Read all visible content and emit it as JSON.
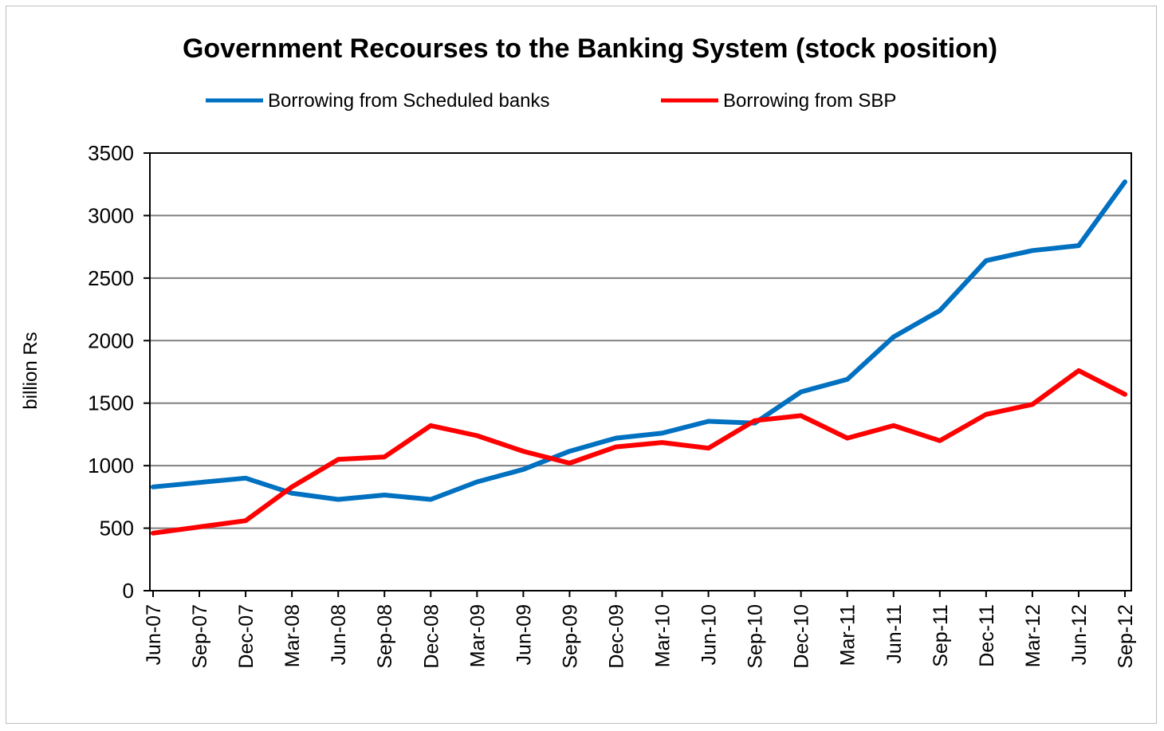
{
  "chart_data": {
    "type": "line",
    "title": "Government Recourses to the Banking System (stock position)",
    "ylabel": "billion Rs",
    "xlabel": "",
    "ylim": [
      0,
      3500
    ],
    "yticks": [
      0,
      500,
      1000,
      1500,
      2000,
      2500,
      3000,
      3500
    ],
    "grid": true,
    "legend_position": "top",
    "x": [
      "Jun-07",
      "Sep-07",
      "Dec-07",
      "Mar-08",
      "Jun-08",
      "Sep-08",
      "Dec-08",
      "Mar-09",
      "Jun-09",
      "Sep-09",
      "Dec-09",
      "Mar-10",
      "Jun-10",
      "Sep-10",
      "Dec-10",
      "Mar-11",
      "Jun-11",
      "Sep-11",
      "Dec-11",
      "Mar-12",
      "Jun-12",
      "Sep-12"
    ],
    "series": [
      {
        "name": "Borrowing from Scheduled banks",
        "color": "#0070c0",
        "values": [
          830,
          865,
          900,
          780,
          730,
          765,
          730,
          870,
          970,
          1115,
          1220,
          1260,
          1355,
          1340,
          1590,
          1690,
          2030,
          2240,
          2640,
          2720,
          2760,
          3270
        ]
      },
      {
        "name": "Borrowing from SBP",
        "color": "#ff0000",
        "values": [
          460,
          510,
          560,
          830,
          1050,
          1070,
          1320,
          1240,
          1115,
          1020,
          1150,
          1185,
          1140,
          1360,
          1400,
          1220,
          1320,
          1200,
          1410,
          1490,
          1760,
          1570
        ]
      }
    ]
  }
}
